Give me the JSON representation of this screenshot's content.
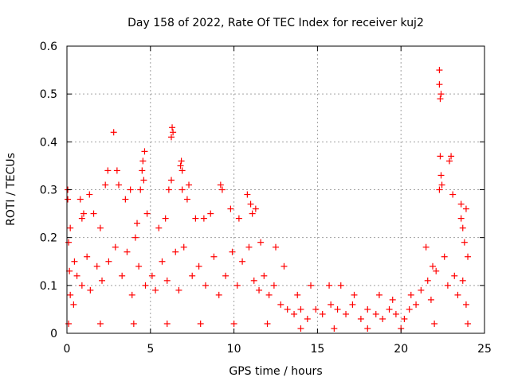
{
  "chart_data": {
    "type": "scatter",
    "title": "Day 158 of 2022, Rate Of TEC Index for receiver kuj2",
    "xlabel": "GPS time / hours",
    "ylabel": "ROTI / TECUs",
    "xlim": [
      0,
      25
    ],
    "ylim": [
      0,
      0.6
    ],
    "xticks": [
      0,
      5,
      10,
      15,
      20,
      25
    ],
    "yticks": [
      0,
      0.1,
      0.2,
      0.3,
      0.4,
      0.5,
      0.6
    ],
    "xtick_labels": [
      "0",
      "5",
      "10",
      "15",
      "20",
      "25"
    ],
    "ytick_labels": [
      "0",
      "0.1",
      "0.2",
      "0.3",
      "0.4",
      "0.5",
      "0.6"
    ],
    "grid": true,
    "legend": "none",
    "marker": "+",
    "marker_color": "#ff0000",
    "series": [
      {
        "points": [
          [
            0.05,
            0.3
          ],
          [
            0.05,
            0.28
          ],
          [
            0.1,
            0.19
          ],
          [
            0.15,
            0.13
          ],
          [
            0.2,
            0.22
          ],
          [
            0.45,
            0.15
          ],
          [
            0.8,
            0.28
          ],
          [
            0.9,
            0.24
          ],
          [
            1.0,
            0.25
          ],
          [
            1.35,
            0.29
          ],
          [
            1.6,
            0.25
          ],
          [
            2.0,
            0.22
          ],
          [
            2.3,
            0.31
          ],
          [
            2.45,
            0.34
          ],
          [
            2.8,
            0.42
          ],
          [
            3.0,
            0.34
          ],
          [
            3.1,
            0.31
          ],
          [
            3.5,
            0.28
          ],
          [
            3.8,
            0.3
          ],
          [
            4.2,
            0.23
          ],
          [
            4.4,
            0.3
          ],
          [
            4.55,
            0.36
          ],
          [
            4.65,
            0.38
          ],
          [
            4.5,
            0.34
          ],
          [
            4.6,
            0.32
          ],
          [
            4.8,
            0.25
          ],
          [
            5.5,
            0.22
          ],
          [
            5.9,
            0.24
          ],
          [
            6.1,
            0.3
          ],
          [
            6.25,
            0.32
          ],
          [
            6.25,
            0.41
          ],
          [
            6.3,
            0.43
          ],
          [
            6.35,
            0.42
          ],
          [
            6.8,
            0.35
          ],
          [
            6.85,
            0.36
          ],
          [
            6.9,
            0.34
          ],
          [
            6.9,
            0.3
          ],
          [
            7.3,
            0.31
          ],
          [
            7.2,
            0.28
          ],
          [
            7.7,
            0.24
          ],
          [
            8.2,
            0.24
          ],
          [
            8.6,
            0.25
          ],
          [
            9.2,
            0.31
          ],
          [
            9.3,
            0.3
          ],
          [
            9.8,
            0.26
          ],
          [
            10.3,
            0.24
          ],
          [
            10.8,
            0.29
          ],
          [
            11.0,
            0.27
          ],
          [
            11.1,
            0.25
          ],
          [
            11.3,
            0.26
          ],
          [
            11.6,
            0.19
          ],
          [
            12.5,
            0.18
          ],
          [
            13.0,
            0.14
          ],
          [
            13.8,
            0.08
          ],
          [
            14.6,
            0.1
          ],
          [
            15.7,
            0.1
          ],
          [
            16.4,
            0.1
          ],
          [
            17.2,
            0.08
          ],
          [
            18.7,
            0.08
          ],
          [
            19.5,
            0.07
          ],
          [
            20.6,
            0.08
          ],
          [
            21.5,
            0.18
          ],
          [
            21.9,
            0.14
          ],
          [
            22.3,
            0.55
          ],
          [
            22.3,
            0.52
          ],
          [
            22.35,
            0.49
          ],
          [
            22.4,
            0.5
          ],
          [
            22.35,
            0.37
          ],
          [
            22.4,
            0.33
          ],
          [
            22.3,
            0.3
          ],
          [
            22.45,
            0.31
          ],
          [
            22.9,
            0.36
          ],
          [
            23.0,
            0.37
          ],
          [
            23.1,
            0.29
          ],
          [
            23.6,
            0.27
          ],
          [
            23.6,
            0.24
          ],
          [
            23.7,
            0.22
          ],
          [
            23.9,
            0.26
          ],
          [
            24.0,
            0.16
          ],
          [
            23.8,
            0.19
          ],
          [
            0.2,
            0.08
          ],
          [
            0.4,
            0.06
          ],
          [
            0.6,
            0.12
          ],
          [
            0.9,
            0.1
          ],
          [
            1.2,
            0.16
          ],
          [
            1.4,
            0.09
          ],
          [
            1.8,
            0.14
          ],
          [
            2.1,
            0.11
          ],
          [
            2.5,
            0.15
          ],
          [
            2.9,
            0.18
          ],
          [
            3.3,
            0.12
          ],
          [
            3.6,
            0.17
          ],
          [
            3.9,
            0.08
          ],
          [
            4.1,
            0.2
          ],
          [
            4.3,
            0.14
          ],
          [
            4.7,
            0.1
          ],
          [
            5.1,
            0.12
          ],
          [
            5.3,
            0.09
          ],
          [
            5.7,
            0.15
          ],
          [
            6.0,
            0.11
          ],
          [
            6.5,
            0.17
          ],
          [
            6.7,
            0.09
          ],
          [
            7.0,
            0.18
          ],
          [
            7.5,
            0.12
          ],
          [
            7.9,
            0.14
          ],
          [
            8.3,
            0.1
          ],
          [
            8.8,
            0.16
          ],
          [
            9.1,
            0.08
          ],
          [
            9.5,
            0.12
          ],
          [
            9.9,
            0.17
          ],
          [
            10.2,
            0.1
          ],
          [
            10.5,
            0.15
          ],
          [
            10.9,
            0.18
          ],
          [
            11.2,
            0.11
          ],
          [
            11.5,
            0.09
          ],
          [
            11.8,
            0.12
          ],
          [
            12.1,
            0.08
          ],
          [
            12.4,
            0.1
          ],
          [
            12.8,
            0.06
          ],
          [
            13.2,
            0.05
          ],
          [
            13.6,
            0.04
          ],
          [
            14.0,
            0.05
          ],
          [
            14.4,
            0.03
          ],
          [
            14.9,
            0.05
          ],
          [
            15.3,
            0.04
          ],
          [
            15.8,
            0.06
          ],
          [
            16.2,
            0.05
          ],
          [
            16.7,
            0.04
          ],
          [
            17.1,
            0.06
          ],
          [
            17.6,
            0.03
          ],
          [
            18.0,
            0.05
          ],
          [
            18.5,
            0.04
          ],
          [
            18.9,
            0.03
          ],
          [
            19.3,
            0.05
          ],
          [
            19.7,
            0.04
          ],
          [
            20.2,
            0.03
          ],
          [
            20.5,
            0.05
          ],
          [
            20.9,
            0.06
          ],
          [
            21.2,
            0.09
          ],
          [
            21.6,
            0.11
          ],
          [
            21.8,
            0.07
          ],
          [
            22.1,
            0.13
          ],
          [
            22.6,
            0.16
          ],
          [
            22.8,
            0.1
          ],
          [
            23.2,
            0.12
          ],
          [
            23.4,
            0.08
          ],
          [
            23.7,
            0.11
          ],
          [
            23.9,
            0.06
          ],
          [
            0.1,
            0.02
          ],
          [
            2.0,
            0.02
          ],
          [
            4.0,
            0.02
          ],
          [
            6.0,
            0.02
          ],
          [
            8.0,
            0.02
          ],
          [
            10.0,
            0.02
          ],
          [
            12.0,
            0.02
          ],
          [
            14.0,
            0.01
          ],
          [
            16.0,
            0.01
          ],
          [
            18.0,
            0.01
          ],
          [
            20.0,
            0.01
          ],
          [
            22.0,
            0.02
          ],
          [
            24.0,
            0.02
          ]
        ]
      }
    ]
  }
}
